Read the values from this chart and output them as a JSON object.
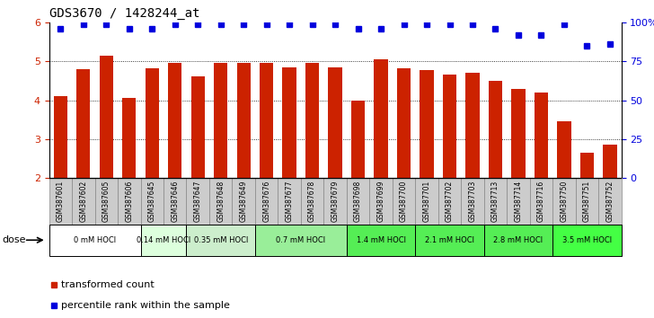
{
  "title": "GDS3670 / 1428244_at",
  "samples": [
    "GSM387601",
    "GSM387602",
    "GSM387605",
    "GSM387606",
    "GSM387645",
    "GSM387646",
    "GSM387647",
    "GSM387648",
    "GSM387649",
    "GSM387676",
    "GSM387677",
    "GSM387678",
    "GSM387679",
    "GSM387698",
    "GSM387699",
    "GSM387700",
    "GSM387701",
    "GSM387702",
    "GSM387703",
    "GSM387713",
    "GSM387714",
    "GSM387716",
    "GSM387750",
    "GSM387751",
    "GSM387752"
  ],
  "bar_values": [
    4.1,
    4.8,
    5.15,
    4.05,
    4.82,
    4.95,
    4.6,
    4.95,
    4.95,
    4.95,
    4.85,
    4.95,
    4.85,
    4.0,
    5.05,
    4.82,
    4.78,
    4.65,
    4.7,
    4.5,
    4.3,
    4.2,
    3.45,
    2.65,
    2.85
  ],
  "percentile_values": [
    96,
    99,
    99,
    96,
    96,
    99,
    99,
    99,
    99,
    99,
    99,
    99,
    99,
    96,
    96,
    99,
    99,
    99,
    99,
    96,
    92,
    92,
    99,
    85,
    86
  ],
  "bar_color": "#cc2200",
  "dot_color": "#0000dd",
  "ylim_left": [
    2,
    6
  ],
  "ylim_right": [
    0,
    100
  ],
  "yticks_left": [
    2,
    3,
    4,
    5,
    6
  ],
  "yticks_right": [
    0,
    25,
    50,
    75,
    100
  ],
  "ytick_labels_right": [
    "0",
    "25",
    "50",
    "75",
    "100%"
  ],
  "dose_groups": [
    {
      "label": "0 mM HOCl",
      "start": 0,
      "end": 4,
      "color": "#ffffff"
    },
    {
      "label": "0.14 mM HOCl",
      "start": 4,
      "end": 6,
      "color": "#ddffdd"
    },
    {
      "label": "0.35 mM HOCl",
      "start": 6,
      "end": 9,
      "color": "#cceecc"
    },
    {
      "label": "0.7 mM HOCl",
      "start": 9,
      "end": 13,
      "color": "#99ee99"
    },
    {
      "label": "1.4 mM HOCl",
      "start": 13,
      "end": 16,
      "color": "#55ee55"
    },
    {
      "label": "2.1 mM HOCl",
      "start": 16,
      "end": 19,
      "color": "#55ee55"
    },
    {
      "label": "2.8 mM HOCl",
      "start": 19,
      "end": 22,
      "color": "#55ee55"
    },
    {
      "label": "3.5 mM HOCl",
      "start": 22,
      "end": 25,
      "color": "#44ff44"
    }
  ],
  "bar_width": 0.6,
  "xlabel_dose": "dose",
  "legend_items": [
    {
      "label": "transformed count",
      "color": "#cc2200"
    },
    {
      "label": "percentile rank within the sample",
      "color": "#0000dd"
    }
  ]
}
